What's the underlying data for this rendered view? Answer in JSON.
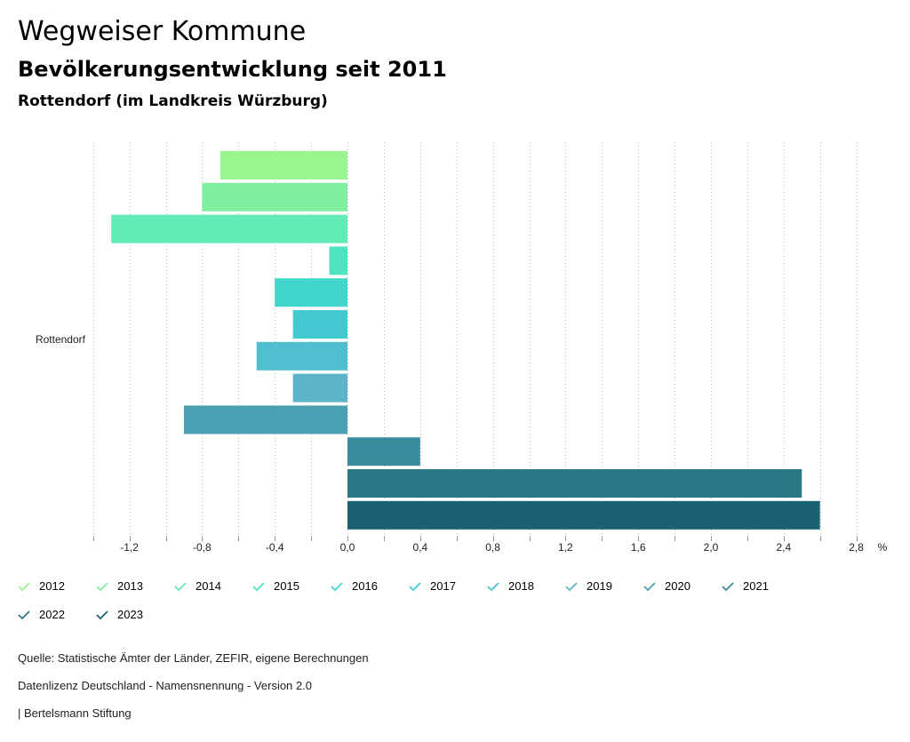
{
  "header": {
    "title": "Wegweiser Kommune",
    "subtitle": "Bevölkerungsentwicklung seit 2011",
    "region": "Rottendorf (im Landkreis Würzburg)"
  },
  "chart_data": {
    "type": "bar",
    "orientation": "horizontal",
    "category": "Rottendorf",
    "unit": "%",
    "xlim": [
      -1.4,
      2.9
    ],
    "ticks": [
      -1.2,
      -0.8,
      -0.4,
      0.0,
      0.4,
      0.8,
      1.2,
      1.6,
      2.0,
      2.4,
      2.8
    ],
    "tick_labels": [
      "-1,2",
      "-0,8",
      "-0,4",
      "0,0",
      "0,4",
      "0,8",
      "1,2",
      "1,6",
      "2,0",
      "2,4",
      "2,8"
    ],
    "grid": "vertical dotted",
    "series": [
      {
        "name": "2012",
        "value": -0.7,
        "color": "#99f58f"
      },
      {
        "name": "2013",
        "value": -0.8,
        "color": "#7ef0a0"
      },
      {
        "name": "2014",
        "value": -1.3,
        "color": "#63ebb5"
      },
      {
        "name": "2015",
        "value": -0.1,
        "color": "#4fe3c0"
      },
      {
        "name": "2016",
        "value": -0.4,
        "color": "#42d6cc"
      },
      {
        "name": "2017",
        "value": -0.3,
        "color": "#43cad0"
      },
      {
        "name": "2018",
        "value": -0.5,
        "color": "#4fbfcf"
      },
      {
        "name": "2019",
        "value": -0.3,
        "color": "#5db4c9"
      },
      {
        "name": "2020",
        "value": -0.9,
        "color": "#4aa0b3"
      },
      {
        "name": "2021",
        "value": 0.4,
        "color": "#3a8b9d"
      },
      {
        "name": "2022",
        "value": 2.5,
        "color": "#2a7787"
      },
      {
        "name": "2023",
        "value": 2.6,
        "color": "#1a6171"
      }
    ]
  },
  "footer": {
    "source": "Quelle: Statistische Ämter der Länder, ZEFIR, eigene Berechnungen",
    "license": "Datenlizenz Deutschland - Namensnennung - Version 2.0",
    "credit": "| Bertelsmann Stiftung"
  }
}
